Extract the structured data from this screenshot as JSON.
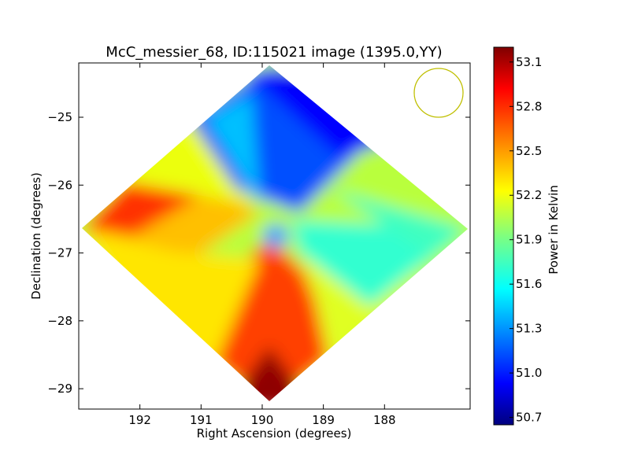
{
  "chart_data": {
    "type": "heatmap",
    "title": "McC_messier_68, ID:115021 image (1395.0,YY)",
    "xlabel": "Right Ascension (degrees)",
    "ylabel": "Declination (degrees)",
    "xlim": [
      193.0,
      186.6
    ],
    "ylim": [
      -29.3,
      -24.2
    ],
    "x_ticks": [
      192,
      191,
      190,
      189,
      188
    ],
    "x_tick_labels": [
      "192",
      "191",
      "190",
      "189",
      "188"
    ],
    "y_ticks": [
      -25,
      -26,
      -27,
      -28,
      -29
    ],
    "y_tick_labels": [
      "−25",
      "−26",
      "−27",
      "−28",
      "−29"
    ],
    "colorbar": {
      "label": "Power in Kelvin",
      "colormap": "jet",
      "range": [
        50.65,
        53.2
      ],
      "ticks": [
        50.7,
        51.0,
        51.3,
        51.6,
        51.9,
        52.2,
        52.5,
        52.8,
        53.1
      ],
      "tick_labels": [
        "50.7",
        "51.0",
        "51.3",
        "51.6",
        "51.9",
        "52.2",
        "52.5",
        "52.8",
        "53.1"
      ]
    },
    "footprint": {
      "shape": "diamond",
      "center": [
        189.95,
        -26.85
      ],
      "corners": [
        [
          189.95,
          -24.2
        ],
        [
          186.65,
          -26.85
        ],
        [
          189.95,
          -29.15
        ],
        [
          193.0,
          -26.85
        ]
      ]
    },
    "field_summary": [
      {
        "region": "north-east (upper right)",
        "value_range": [
          50.65,
          51.1
        ]
      },
      {
        "region": "east (right)",
        "value_range": [
          51.5,
          51.8
        ]
      },
      {
        "region": "west (left)",
        "value_range": [
          52.2,
          52.8
        ]
      },
      {
        "region": "south (bottom)",
        "value_range": [
          52.5,
          53.2
        ]
      },
      {
        "region": "center",
        "value": 51.4
      }
    ],
    "beam_circle": {
      "center": [
        187.35,
        -24.62
      ],
      "radius_deg": 0.37,
      "color": "#bfbf00"
    },
    "grid": false,
    "legend": "none"
  }
}
